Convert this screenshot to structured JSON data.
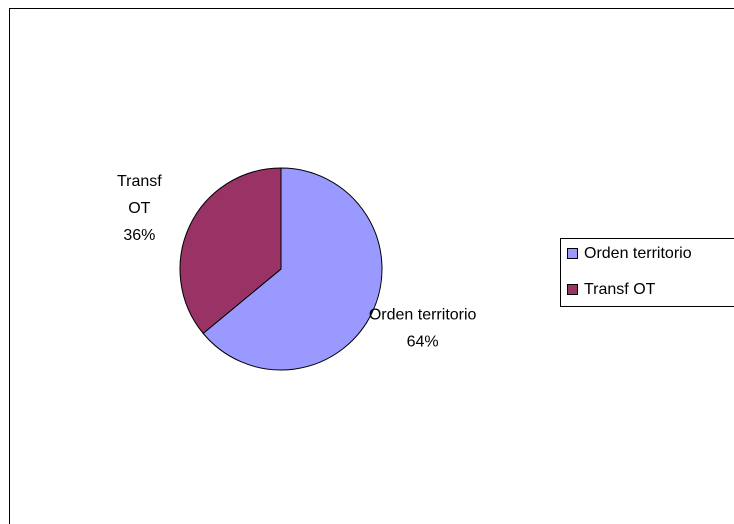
{
  "chart_data": {
    "type": "pie",
    "categories": [
      "Orden territorio",
      "Transf OT"
    ],
    "values": [
      64,
      36
    ],
    "value_labels": [
      "64%",
      "36%"
    ],
    "colors": [
      "#9999ff",
      "#993366"
    ],
    "legend": "right"
  }
}
